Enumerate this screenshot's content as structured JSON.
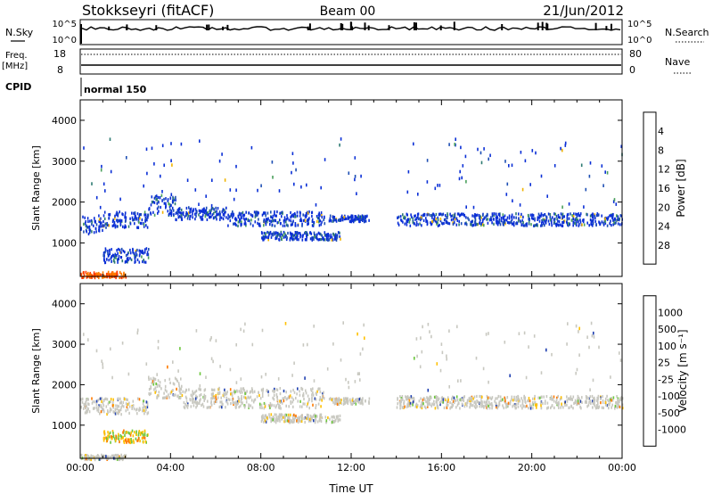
{
  "header": {
    "title": "Stokkseyri (fitACF)",
    "beam": "Beam 00",
    "date": "21/Jun/2012"
  },
  "top_panels": {
    "nsky_label": "N.Sky",
    "nsearch_label": "N.Search",
    "freq_label": "Freq.",
    "freq_unit": "[MHz]",
    "nave_label": "Nave",
    "cpid_label": "CPID",
    "cpid_text": "normal 150",
    "noise_ticks_left": [
      "10^5",
      "10^0"
    ],
    "noise_ticks_right": [
      "10^5",
      "10^0"
    ],
    "freq_ticks": [
      "18",
      "8"
    ],
    "nave_ticks": [
      "80",
      "0"
    ]
  },
  "chart_data": [
    {
      "type": "heatmap",
      "panel": "power",
      "ylabel": "Slant Range [km]",
      "xlabel": "",
      "ylim": [
        180,
        4500
      ],
      "yticks": [
        1000,
        2000,
        3000,
        4000
      ],
      "xlim": [
        0,
        24
      ],
      "colorbar": {
        "label": "Power [dB]",
        "ticks": [
          "4",
          "8",
          "12",
          "16",
          "20",
          "24",
          "28"
        ],
        "colors": [
          "#0a2fd6",
          "#1e4fb4",
          "#2e7b73",
          "#4aa05c",
          "#f0b400",
          "#ff7a00",
          "#ff3a00",
          "#e00000"
        ]
      },
      "echo_bands": [
        {
          "t0": 0.0,
          "t1": 1.0,
          "r0": 1250,
          "r1": 1700
        },
        {
          "t0": 1.0,
          "t1": 3.0,
          "r0": 1400,
          "r1": 1800
        },
        {
          "t0": 3.0,
          "t1": 4.2,
          "r0": 1700,
          "r1": 2200
        },
        {
          "t0": 4.2,
          "t1": 6.5,
          "r0": 1600,
          "r1": 1900
        },
        {
          "t0": 6.5,
          "t1": 10.8,
          "r0": 1450,
          "r1": 1800
        },
        {
          "t0": 11.0,
          "t1": 12.8,
          "r0": 1550,
          "r1": 1700
        },
        {
          "t0": 14.0,
          "t1": 24.0,
          "r0": 1450,
          "r1": 1750
        },
        {
          "t0": 0.0,
          "t1": 2.0,
          "r0": 180,
          "r1": 320
        },
        {
          "t0": 1.0,
          "t1": 3.0,
          "r0": 550,
          "r1": 900
        },
        {
          "t0": 8.0,
          "t1": 11.5,
          "r0": 1100,
          "r1": 1300
        }
      ]
    },
    {
      "type": "heatmap",
      "panel": "velocity",
      "ylabel": "Slant Range [km]",
      "xlabel": "Time UT",
      "ylim": [
        180,
        4500
      ],
      "yticks": [
        1000,
        2000,
        3000,
        4000
      ],
      "xlim": [
        0,
        24
      ],
      "xtick_labels": [
        "00:00",
        "04:00",
        "08:00",
        "12:00",
        "16:00",
        "20:00",
        "00:00"
      ],
      "colorbar": {
        "label": "Velocity [m s⁻¹]",
        "ticks": [
          "1000",
          "500",
          "100",
          "25",
          "-25",
          "-100",
          "-500",
          "-1000"
        ],
        "colors": [
          "#1f3fb0",
          "#3a7f8f",
          "#3fb27f",
          "#6cc63c",
          "#c8c8c0",
          "#ffc000",
          "#ff7a00",
          "#ff3a00",
          "#e00000"
        ]
      },
      "echo_bands": [
        {
          "t0": 0.0,
          "t1": 3.0,
          "r0": 1300,
          "r1": 1700
        },
        {
          "t0": 3.0,
          "t1": 4.5,
          "r0": 1700,
          "r1": 2200
        },
        {
          "t0": 4.5,
          "t1": 10.8,
          "r0": 1450,
          "r1": 1950
        },
        {
          "t0": 11.0,
          "t1": 12.8,
          "r0": 1550,
          "r1": 1700
        },
        {
          "t0": 14.0,
          "t1": 24.0,
          "r0": 1450,
          "r1": 1750
        },
        {
          "t0": 1.0,
          "t1": 3.0,
          "r0": 600,
          "r1": 900
        },
        {
          "t0": 0.0,
          "t1": 2.0,
          "r0": 180,
          "r1": 300
        },
        {
          "t0": 8.0,
          "t1": 11.5,
          "r0": 1100,
          "r1": 1300
        }
      ]
    }
  ]
}
